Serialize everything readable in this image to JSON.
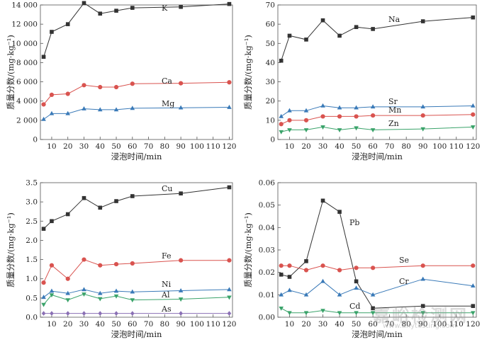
{
  "chart_data": [
    {
      "type": "line",
      "ylabel": "质量分数/(mg·kg⁻¹)",
      "xlabel": "浸泡时间/min",
      "x": [
        5,
        10,
        20,
        30,
        40,
        50,
        60,
        90,
        120
      ],
      "xticks": [
        10,
        20,
        30,
        40,
        50,
        60,
        70,
        80,
        90,
        100,
        110,
        120
      ],
      "xlim": [
        3,
        122
      ],
      "ylim": [
        0,
        14000
      ],
      "yticks": [
        0,
        2000,
        4000,
        6000,
        8000,
        10000,
        12000,
        14000
      ],
      "ytick_labels": [
        "0",
        "2 000",
        "4 000",
        "6 000",
        "8 000",
        "10 000",
        "12 000",
        "14 000"
      ],
      "series": [
        {
          "name": "K",
          "values": [
            8600,
            11200,
            12000,
            14200,
            13100,
            13400,
            13700,
            13800,
            14100
          ],
          "color": "#333333",
          "marker": "square"
        },
        {
          "name": "Ca",
          "values": [
            3650,
            4650,
            4750,
            5650,
            5450,
            5450,
            5800,
            5850,
            5950
          ],
          "color": "#d9534f",
          "marker": "circle"
        },
        {
          "name": "Mg",
          "values": [
            2100,
            2700,
            2700,
            3200,
            3100,
            3100,
            3250,
            3300,
            3350
          ],
          "color": "#3a7ab8",
          "marker": "triangle-up"
        }
      ]
    },
    {
      "type": "line",
      "ylabel": "质量分数/(mg·kg⁻¹)",
      "xlabel": "浸泡时间/min",
      "x": [
        5,
        10,
        20,
        30,
        40,
        50,
        60,
        90,
        120
      ],
      "xticks": [
        10,
        20,
        30,
        40,
        50,
        60,
        70,
        80,
        90,
        100,
        110,
        120
      ],
      "xlim": [
        3,
        122
      ],
      "ylim": [
        0,
        70
      ],
      "yticks": [
        0,
        10,
        20,
        30,
        40,
        50,
        60,
        70
      ],
      "ytick_labels": [
        "0",
        "10",
        "20",
        "30",
        "40",
        "50",
        "60",
        "70"
      ],
      "series": [
        {
          "name": "Na",
          "values": [
            41,
            54,
            52,
            62,
            54,
            58.5,
            57.5,
            61.5,
            63.5
          ],
          "color": "#333333",
          "marker": "square"
        },
        {
          "name": "Sr",
          "values": [
            12,
            15,
            15,
            17.5,
            16.5,
            16.5,
            17,
            17,
            17.5
          ],
          "color": "#3a7ab8",
          "marker": "triangle-up"
        },
        {
          "name": "Mn",
          "values": [
            8,
            10,
            10,
            12,
            12,
            12,
            12.5,
            12.5,
            13
          ],
          "color": "#d9534f",
          "marker": "circle"
        },
        {
          "name": "Zn",
          "values": [
            4,
            5,
            5,
            6.5,
            5,
            6,
            5,
            5.5,
            6.5
          ],
          "color": "#3aa36a",
          "marker": "triangle-down"
        }
      ]
    },
    {
      "type": "line",
      "ylabel": "质量分数/(mg·kg⁻¹)",
      "xlabel": "浸泡时间/min",
      "x": [
        5,
        10,
        20,
        30,
        40,
        50,
        60,
        90,
        120
      ],
      "xticks": [
        10,
        20,
        30,
        40,
        50,
        60,
        70,
        80,
        90,
        100,
        110,
        120
      ],
      "xlim": [
        3,
        122
      ],
      "ylim": [
        0,
        3.5
      ],
      "yticks": [
        0,
        0.5,
        1.0,
        1.5,
        2.0,
        2.5,
        3.0,
        3.5
      ],
      "ytick_labels": [
        "0.0",
        "0.5",
        "1.0",
        "1.5",
        "2.0",
        "2.5",
        "3.0",
        "3.5"
      ],
      "series": [
        {
          "name": "Cu",
          "values": [
            2.3,
            2.5,
            2.68,
            3.1,
            2.85,
            3.02,
            3.15,
            3.22,
            3.38
          ],
          "color": "#333333",
          "marker": "square"
        },
        {
          "name": "Fe",
          "values": [
            0.9,
            1.35,
            1.0,
            1.5,
            1.35,
            1.38,
            1.4,
            1.48,
            1.48
          ],
          "color": "#d9534f",
          "marker": "circle"
        },
        {
          "name": "Ni",
          "values": [
            0.52,
            0.68,
            0.62,
            0.72,
            0.62,
            0.68,
            0.66,
            0.69,
            0.72
          ],
          "color": "#3a7ab8",
          "marker": "triangle-up"
        },
        {
          "name": "Al",
          "values": [
            0.33,
            0.58,
            0.45,
            0.6,
            0.48,
            0.55,
            0.45,
            0.47,
            0.52
          ],
          "color": "#3aa36a",
          "marker": "triangle-down"
        },
        {
          "name": "As",
          "values": [
            0.1,
            0.1,
            0.1,
            0.1,
            0.1,
            0.1,
            0.1,
            0.1,
            0.1
          ],
          "color": "#8a6fb5",
          "marker": "diamond"
        }
      ]
    },
    {
      "type": "line",
      "ylabel": "质量分数/(mg·kg⁻¹)",
      "xlabel": "浸泡时间/min",
      "x": [
        5,
        10,
        20,
        30,
        40,
        50,
        60,
        90,
        120
      ],
      "xticks": [
        10,
        20,
        30,
        40,
        50,
        60,
        70,
        80,
        90,
        100,
        110,
        120
      ],
      "xlim": [
        3,
        122
      ],
      "ylim": [
        0,
        0.06
      ],
      "yticks": [
        0,
        0.01,
        0.02,
        0.03,
        0.04,
        0.05,
        0.06
      ],
      "ytick_labels": [
        "0.00",
        "0.01",
        "0.02",
        "0.03",
        "0.04",
        "0.05",
        "0.06"
      ],
      "series": [
        {
          "name": "Pb",
          "values": [
            0.019,
            0.018,
            0.025,
            0.052,
            0.047,
            0.016,
            0.004,
            0.005,
            0.005
          ],
          "color": "#333333",
          "marker": "square"
        },
        {
          "name": "Se",
          "values": [
            0.023,
            0.023,
            0.021,
            0.023,
            0.021,
            0.022,
            0.022,
            0.023,
            0.023
          ],
          "color": "#d9534f",
          "marker": "circle"
        },
        {
          "name": "Cr",
          "values": [
            0.01,
            0.012,
            0.01,
            0.016,
            0.01,
            0.013,
            0.01,
            0.017,
            0.014
          ],
          "color": "#3a7ab8",
          "marker": "triangle-up"
        },
        {
          "name": "Cd",
          "values": [
            0.004,
            0.002,
            0.002,
            0.003,
            0.002,
            0.002,
            0.002,
            0.002,
            0.002
          ],
          "color": "#3aa36a",
          "marker": "triangle-down"
        }
      ]
    }
  ],
  "watermark": {
    "main": "嘉峪检测网",
    "sub": "www.anytesting.com"
  }
}
